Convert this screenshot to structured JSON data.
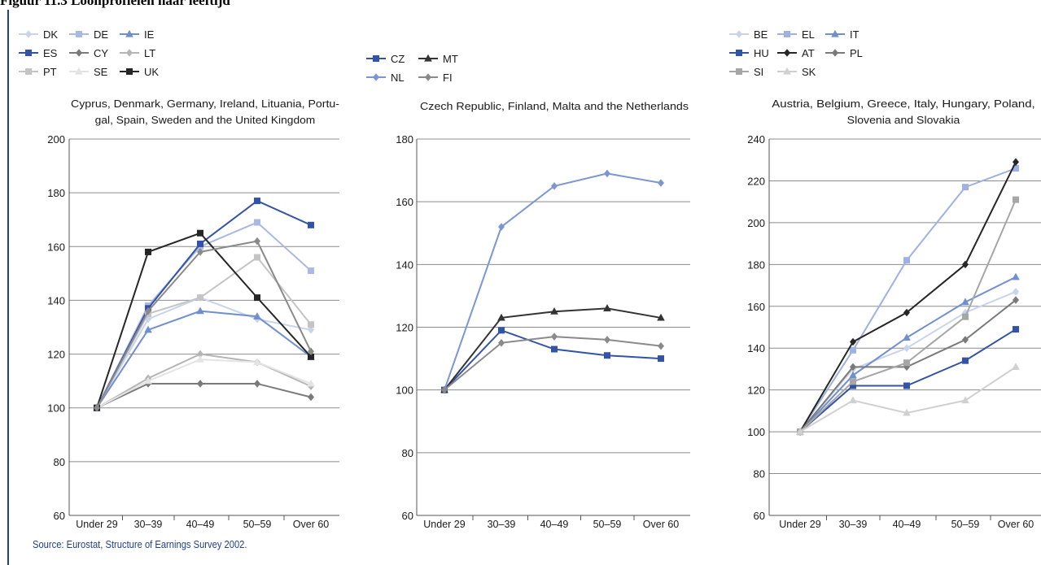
{
  "figure": {
    "title": "Figuur 11.3 Loonprofielen naar leeftijd"
  },
  "source": "Source: Eurostat, Structure of Earnings Survey 2002.",
  "chart_data": [
    {
      "type": "line",
      "title_lines": [
        "Cyprus, Denmark, Germany, Ireland, Lituania, Portu-",
        "gal, Spain, Sweden and the United Kingdom"
      ],
      "categories": [
        "Under 29",
        "30–39",
        "40–49",
        "50–59",
        "Over 60"
      ],
      "ylim": [
        60,
        200
      ],
      "yticks": [
        60,
        80,
        100,
        120,
        140,
        160,
        180,
        200
      ],
      "grid": true,
      "legend_placement": "top-left",
      "series": [
        {
          "name": "DK",
          "color": "#c9d3ee",
          "marker": "diamond",
          "values": [
            100,
            133,
            141,
            133,
            129
          ]
        },
        {
          "name": "DE",
          "color": "#aab9e2",
          "marker": "square",
          "values": [
            100,
            138,
            160,
            169,
            151
          ]
        },
        {
          "name": "IE",
          "color": "#6f8fcf",
          "marker": "triangle",
          "values": [
            100,
            129,
            136,
            134,
            119
          ]
        },
        {
          "name": "ES",
          "color": "#3353a8",
          "marker": "square",
          "values": [
            100,
            137,
            161,
            177,
            168
          ]
        },
        {
          "name": "CY",
          "color": "#7a7a7a",
          "marker": "diamond",
          "values": [
            100,
            109,
            109,
            109,
            104
          ]
        },
        {
          "name": "LT",
          "color": "#b5b5b5",
          "marker": "diamond",
          "values": [
            100,
            111,
            120,
            117,
            108
          ]
        },
        {
          "name": "PT",
          "color": "#c4c4c4",
          "marker": "square",
          "values": [
            100,
            135,
            141,
            156,
            131
          ]
        },
        {
          "name": "SE",
          "color": "#e4e4e4",
          "marker": "triangle",
          "values": [
            100,
            110,
            118,
            117,
            109
          ]
        },
        {
          "name": "UK",
          "color": "#262626",
          "marker": "square",
          "values": [
            100,
            158,
            165,
            141,
            119
          ]
        },
        {
          "name": "",
          "color": "#8a8a8a",
          "marker": "diamond",
          "values": [
            100,
            136,
            158,
            162,
            121
          ]
        }
      ]
    },
    {
      "type": "line",
      "title_lines": [
        "Czech Republic, Finland, Malta and the Netherlands"
      ],
      "categories": [
        "Under 29",
        "30–39",
        "40–49",
        "50–59",
        "Over 60"
      ],
      "ylim": [
        60,
        180
      ],
      "yticks": [
        60,
        80,
        100,
        120,
        140,
        160,
        180
      ],
      "grid": true,
      "legend_placement": "top-left",
      "series": [
        {
          "name": "CZ",
          "color": "#3353a8",
          "marker": "square",
          "values": [
            100,
            119,
            113,
            111,
            110
          ]
        },
        {
          "name": "MT",
          "color": "#333333",
          "marker": "triangle",
          "values": [
            100,
            123,
            125,
            126,
            123
          ]
        },
        {
          "name": "NL",
          "color": "#7b96d2",
          "marker": "diamond",
          "values": [
            100,
            152,
            165,
            169,
            166
          ]
        },
        {
          "name": "FI",
          "color": "#8a8a8a",
          "marker": "diamond",
          "values": [
            100,
            115,
            117,
            116,
            114
          ]
        }
      ]
    },
    {
      "type": "line",
      "title_lines": [
        "Austria, Belgium, Greece, Italy, Hungary, Poland,",
        "Slovenia and Slovakia"
      ],
      "categories": [
        "Under 29",
        "30–39",
        "40–49",
        "50–59",
        "Over 60"
      ],
      "ylim": [
        60,
        240
      ],
      "yticks": [
        60,
        80,
        100,
        120,
        140,
        160,
        180,
        200,
        220,
        240
      ],
      "grid": true,
      "legend_placement": "top-left",
      "series": [
        {
          "name": "BE",
          "color": "#c9d3ee",
          "marker": "diamond",
          "values": [
            100,
            130,
            140,
            157,
            167
          ]
        },
        {
          "name": "EL",
          "color": "#9fb1e0",
          "marker": "square",
          "values": [
            100,
            139,
            182,
            217,
            226
          ]
        },
        {
          "name": "IT",
          "color": "#6f8fcf",
          "marker": "triangle",
          "values": [
            100,
            127,
            145,
            162,
            174
          ]
        },
        {
          "name": "HU",
          "color": "#3353a8",
          "marker": "square",
          "values": [
            100,
            122,
            122,
            134,
            149
          ]
        },
        {
          "name": "AT",
          "color": "#262626",
          "marker": "diamond",
          "values": [
            100,
            143,
            157,
            180,
            229
          ]
        },
        {
          "name": "PL",
          "color": "#7a7a7a",
          "marker": "diamond",
          "values": [
            100,
            131,
            131,
            144,
            163
          ]
        },
        {
          "name": "SI",
          "color": "#a6a6a6",
          "marker": "square",
          "values": [
            100,
            124,
            133,
            155,
            211
          ]
        },
        {
          "name": "SK",
          "color": "#d0d0d0",
          "marker": "triangle",
          "values": [
            100,
            115,
            109,
            115,
            131
          ]
        }
      ]
    }
  ]
}
